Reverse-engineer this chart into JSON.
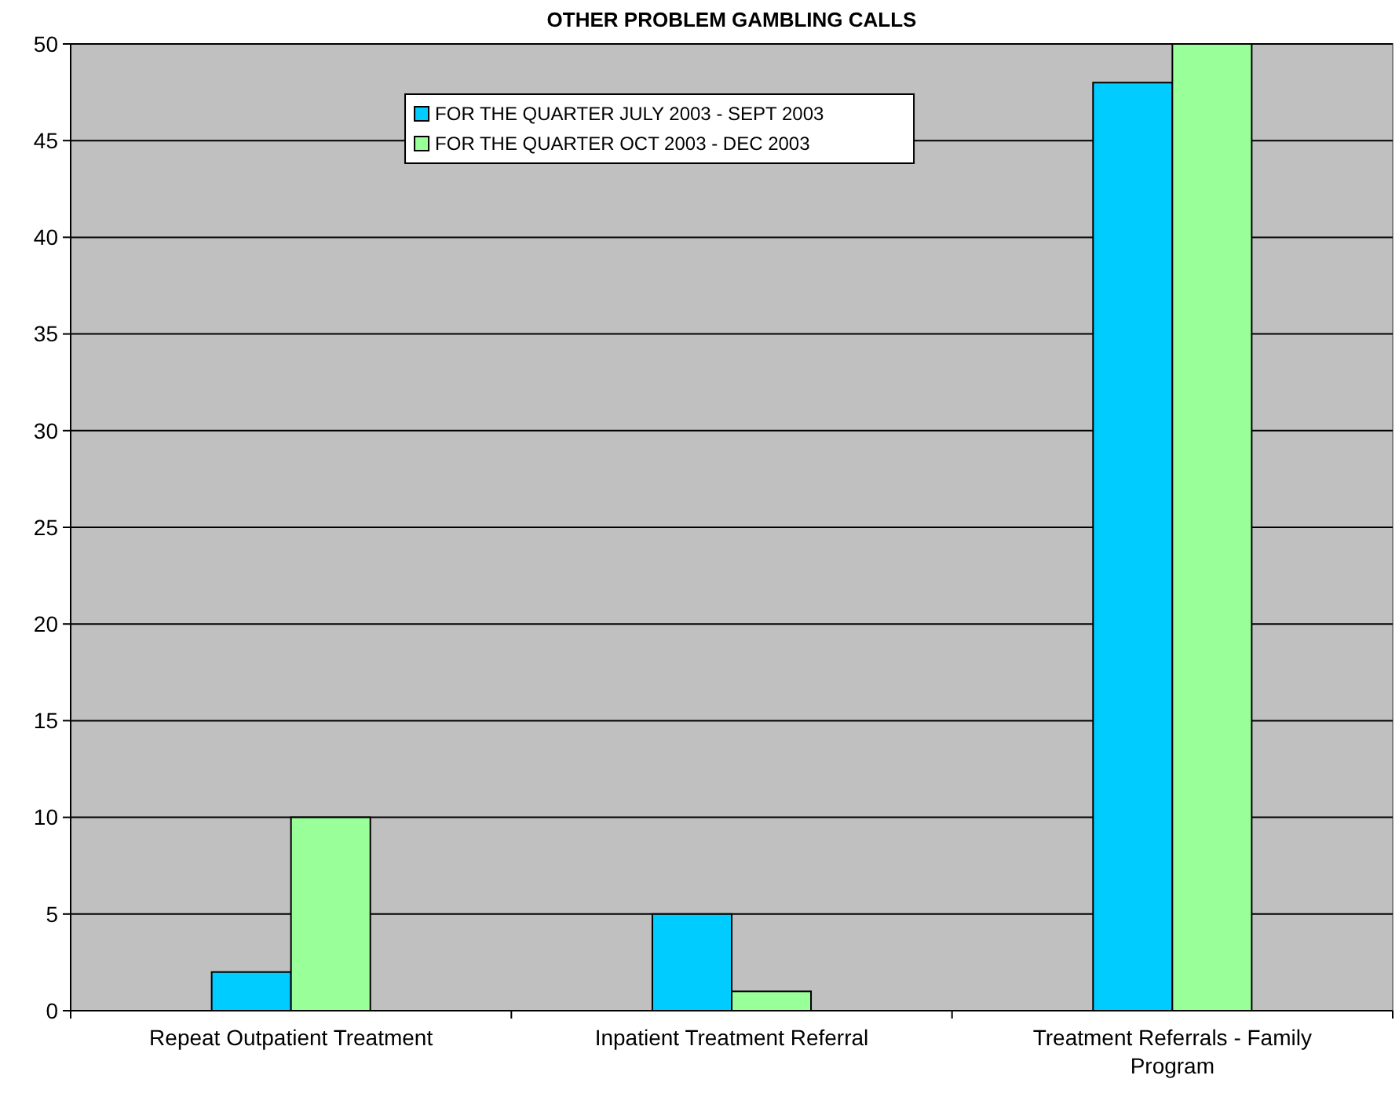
{
  "chart_data": {
    "type": "bar",
    "title": "OTHER PROBLEM GAMBLING CALLS",
    "categories": [
      "Repeat Outpatient Treatment",
      "Inpatient Treatment Referral",
      "Treatment Referrals - Family Program"
    ],
    "series": [
      {
        "name": "FOR THE QUARTER JULY 2003 - SEPT 2003",
        "color": "#00ccff",
        "values": [
          2,
          5,
          48
        ]
      },
      {
        "name": "FOR THE QUARTER OCT 2003 - DEC 2003",
        "color": "#99ff99",
        "values": [
          10,
          1,
          50
        ]
      }
    ],
    "ylim": [
      0,
      50
    ],
    "yticks": [
      0,
      5,
      10,
      15,
      20,
      25,
      30,
      35,
      40,
      45,
      50
    ],
    "grid": "y",
    "legend": "top"
  }
}
